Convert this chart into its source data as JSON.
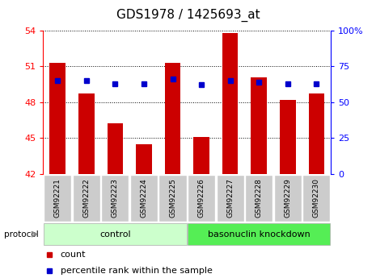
{
  "title": "GDS1978 / 1425693_at",
  "samples": [
    "GSM92221",
    "GSM92222",
    "GSM92223",
    "GSM92224",
    "GSM92225",
    "GSM92226",
    "GSM92227",
    "GSM92228",
    "GSM92229",
    "GSM92230"
  ],
  "bar_values": [
    51.3,
    48.7,
    46.2,
    44.5,
    51.3,
    45.1,
    53.8,
    50.1,
    48.2,
    48.7
  ],
  "dot_values": [
    65,
    65,
    63,
    63,
    66,
    62,
    65,
    64,
    63,
    63
  ],
  "ylim_left": [
    42,
    54
  ],
  "ylim_right": [
    0,
    100
  ],
  "yticks_left": [
    42,
    45,
    48,
    51,
    54
  ],
  "yticks_right": [
    0,
    25,
    50,
    75,
    100
  ],
  "bar_color": "#cc0000",
  "dot_color": "#0000cc",
  "control_label": "control",
  "knockdown_label": "basonuclin knockdown",
  "protocol_label": "protocol",
  "control_color": "#ccffcc",
  "knockdown_color": "#55ee55",
  "tick_label_bg": "#cccccc",
  "legend_count_label": "count",
  "legend_pct_label": "percentile rank within the sample",
  "title_fontsize": 11,
  "bar_width": 0.55,
  "n_control": 5,
  "n_knockdown": 5
}
